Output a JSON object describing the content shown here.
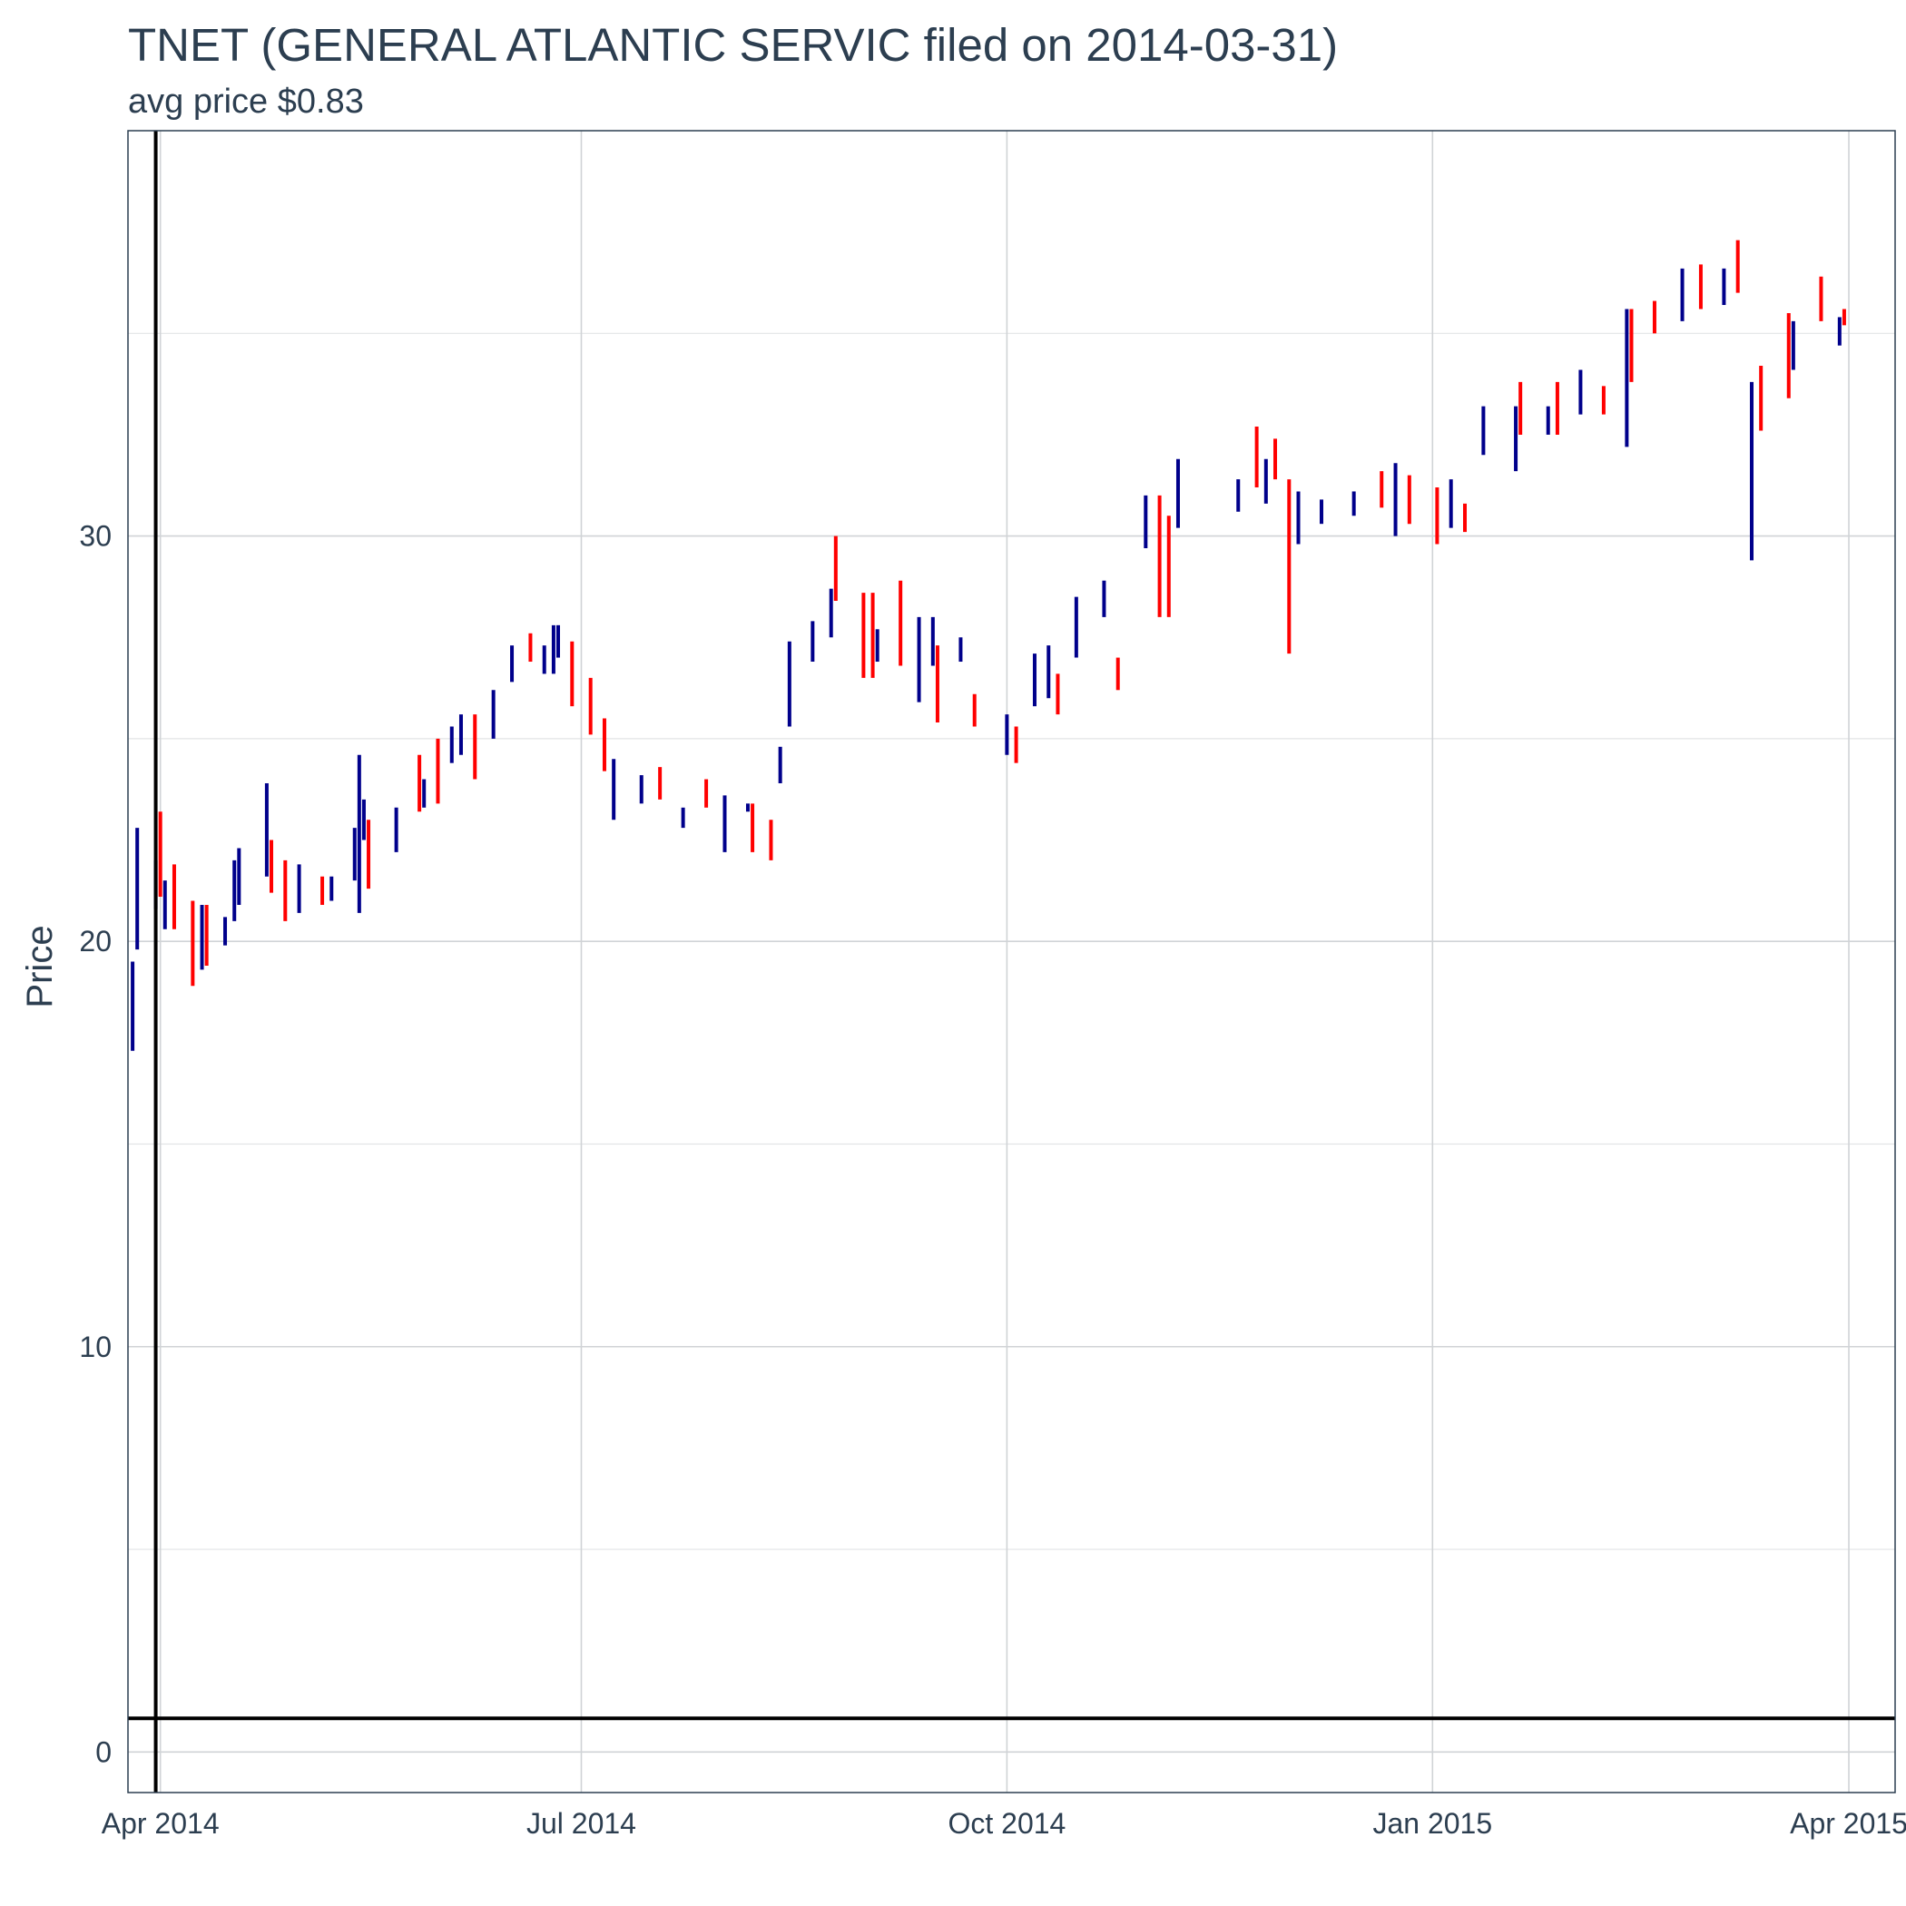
{
  "chart_data": {
    "type": "bar",
    "subtype": "ohlc-range-bars",
    "title": "TNET (GENERAL ATLANTIC SERVIC filed on 2014-03-31)",
    "subtitle": "avg price $0.83",
    "ylabel": "Price",
    "xlabel": "",
    "xlim": [
      "2014-03-25",
      "2015-04-11"
    ],
    "ylim": [
      -1,
      40
    ],
    "x_ticks": [
      {
        "date": "2014-04-01",
        "label": "Apr 2014"
      },
      {
        "date": "2014-07-01",
        "label": "Jul 2014"
      },
      {
        "date": "2014-10-01",
        "label": "Oct 2014"
      },
      {
        "date": "2015-01-01",
        "label": "Jan 2015"
      },
      {
        "date": "2015-04-01",
        "label": "Apr 2015"
      }
    ],
    "y_ticks": [
      0,
      10,
      20,
      30
    ],
    "grid": true,
    "reference_lines": {
      "filing_date": "2014-03-31",
      "avg_price": 0.83
    },
    "colors": {
      "up": "#00008b",
      "down": "#ff0000",
      "reference": "#000000",
      "text": "#2c3e50",
      "panel_border": "#2c3e50"
    },
    "series": [
      {
        "type": "up",
        "points": [
          [
            "2014-03-26",
            17.3,
            19.5
          ],
          [
            "2014-03-27",
            19.8,
            22.8
          ],
          [
            "2014-03-31",
            20.8,
            22.0
          ],
          [
            "2014-04-02",
            20.3,
            21.5
          ],
          [
            "2014-04-10",
            19.3,
            20.9
          ],
          [
            "2014-04-15",
            19.9,
            20.6
          ],
          [
            "2014-04-17",
            20.5,
            22.0
          ],
          [
            "2014-04-18",
            20.9,
            22.3
          ],
          [
            "2014-04-24",
            21.6,
            23.9
          ],
          [
            "2014-05-01",
            20.7,
            21.9
          ],
          [
            "2014-05-08",
            21.0,
            21.6
          ],
          [
            "2014-05-13",
            21.5,
            22.8
          ],
          [
            "2014-05-14",
            20.7,
            24.6
          ],
          [
            "2014-05-15",
            22.5,
            23.5
          ],
          [
            "2014-05-22",
            22.2,
            23.3
          ],
          [
            "2014-05-28",
            23.3,
            24.0
          ],
          [
            "2014-06-03",
            24.4,
            25.3
          ],
          [
            "2014-06-05",
            24.6,
            25.6
          ],
          [
            "2014-06-12",
            25.0,
            26.2
          ],
          [
            "2014-06-16",
            26.4,
            27.3
          ],
          [
            "2014-06-23",
            26.6,
            27.3
          ],
          [
            "2014-06-25",
            26.6,
            27.8
          ],
          [
            "2014-06-26",
            27.0,
            27.8
          ],
          [
            "2014-07-08",
            23.0,
            24.5
          ],
          [
            "2014-07-14",
            23.4,
            24.1
          ],
          [
            "2014-07-23",
            22.8,
            23.3
          ],
          [
            "2014-08-01",
            22.2,
            23.6
          ],
          [
            "2014-08-06",
            23.2,
            23.4
          ],
          [
            "2014-08-13",
            23.9,
            24.8
          ],
          [
            "2014-08-15",
            25.3,
            27.4
          ],
          [
            "2014-08-20",
            26.9,
            27.9
          ],
          [
            "2014-08-24",
            27.5,
            28.7
          ],
          [
            "2014-09-03",
            26.9,
            27.7
          ],
          [
            "2014-09-12",
            25.9,
            28.0
          ],
          [
            "2014-09-15",
            26.8,
            28.0
          ],
          [
            "2014-09-21",
            26.9,
            27.5
          ],
          [
            "2014-10-01",
            24.6,
            25.6
          ],
          [
            "2014-10-07",
            25.8,
            27.1
          ],
          [
            "2014-10-10",
            26.0,
            27.3
          ],
          [
            "2014-10-16",
            27.0,
            28.5
          ],
          [
            "2014-10-22",
            28.0,
            28.9
          ],
          [
            "2014-10-31",
            29.7,
            31.0
          ],
          [
            "2014-11-07",
            30.2,
            31.9
          ],
          [
            "2014-11-20",
            30.6,
            31.4
          ],
          [
            "2014-11-26",
            30.8,
            31.9
          ],
          [
            "2014-12-03",
            29.8,
            31.1
          ],
          [
            "2014-12-08",
            30.3,
            30.9
          ],
          [
            "2014-12-15",
            30.5,
            31.1
          ],
          [
            "2014-12-24",
            30.0,
            31.8
          ],
          [
            "2015-01-05",
            30.2,
            31.4
          ],
          [
            "2015-01-12",
            32.0,
            33.2
          ],
          [
            "2015-01-19",
            31.6,
            33.2
          ],
          [
            "2015-01-26",
            32.5,
            33.2
          ],
          [
            "2015-02-02",
            33.0,
            34.1
          ],
          [
            "2015-02-12",
            32.2,
            35.6
          ],
          [
            "2015-02-24",
            35.3,
            36.6
          ],
          [
            "2015-03-05",
            35.7,
            36.6
          ],
          [
            "2015-03-11",
            29.4,
            33.8
          ],
          [
            "2015-03-20",
            34.1,
            35.3
          ],
          [
            "2015-03-30",
            34.7,
            35.4
          ]
        ]
      },
      {
        "type": "down",
        "points": [
          [
            "2014-04-01",
            21.1,
            23.2
          ],
          [
            "2014-04-04",
            20.3,
            21.9
          ],
          [
            "2014-04-08",
            18.9,
            21.0
          ],
          [
            "2014-04-11",
            19.4,
            20.9
          ],
          [
            "2014-04-25",
            21.2,
            22.5
          ],
          [
            "2014-04-28",
            20.5,
            22.0
          ],
          [
            "2014-05-06",
            20.9,
            21.6
          ],
          [
            "2014-05-16",
            21.3,
            23.0
          ],
          [
            "2014-05-27",
            23.2,
            24.6
          ],
          [
            "2014-05-31",
            23.4,
            25.0
          ],
          [
            "2014-06-08",
            24.0,
            25.6
          ],
          [
            "2014-06-20",
            26.9,
            27.6
          ],
          [
            "2014-06-29",
            25.8,
            27.4
          ],
          [
            "2014-07-03",
            25.1,
            26.5
          ],
          [
            "2014-07-06",
            24.2,
            25.5
          ],
          [
            "2014-07-18",
            23.5,
            24.3
          ],
          [
            "2014-07-28",
            23.3,
            24.0
          ],
          [
            "2014-08-07",
            22.2,
            23.4
          ],
          [
            "2014-08-11",
            22.0,
            23.0
          ],
          [
            "2014-08-25",
            28.4,
            30.0
          ],
          [
            "2014-08-31",
            26.5,
            28.6
          ],
          [
            "2014-09-02",
            26.5,
            28.6
          ],
          [
            "2014-09-08",
            26.8,
            28.9
          ],
          [
            "2014-09-16",
            25.4,
            27.3
          ],
          [
            "2014-09-24",
            25.3,
            26.1
          ],
          [
            "2014-10-03",
            24.4,
            25.3
          ],
          [
            "2014-10-12",
            25.6,
            26.6
          ],
          [
            "2014-10-25",
            26.2,
            27.0
          ],
          [
            "2014-11-03",
            28.0,
            31.0
          ],
          [
            "2014-11-05",
            28.0,
            30.5
          ],
          [
            "2014-11-24",
            31.2,
            32.7
          ],
          [
            "2014-11-28",
            31.4,
            32.4
          ],
          [
            "2014-12-01",
            27.1,
            31.4
          ],
          [
            "2014-12-21",
            30.7,
            31.6
          ],
          [
            "2014-12-27",
            30.3,
            31.5
          ],
          [
            "2015-01-02",
            29.8,
            31.2
          ],
          [
            "2015-01-08",
            30.1,
            30.8
          ],
          [
            "2015-01-20",
            32.5,
            33.8
          ],
          [
            "2015-01-28",
            32.5,
            33.8
          ],
          [
            "2015-02-07",
            33.0,
            33.7
          ],
          [
            "2015-02-13",
            33.8,
            35.6
          ],
          [
            "2015-02-18",
            35.0,
            35.8
          ],
          [
            "2015-02-28",
            35.6,
            36.7
          ],
          [
            "2015-03-08",
            36.0,
            37.3
          ],
          [
            "2015-03-13",
            32.6,
            34.2
          ],
          [
            "2015-03-19",
            33.4,
            35.5
          ],
          [
            "2015-03-26",
            35.3,
            36.4
          ],
          [
            "2015-03-31",
            35.2,
            35.6
          ]
        ]
      }
    ]
  }
}
